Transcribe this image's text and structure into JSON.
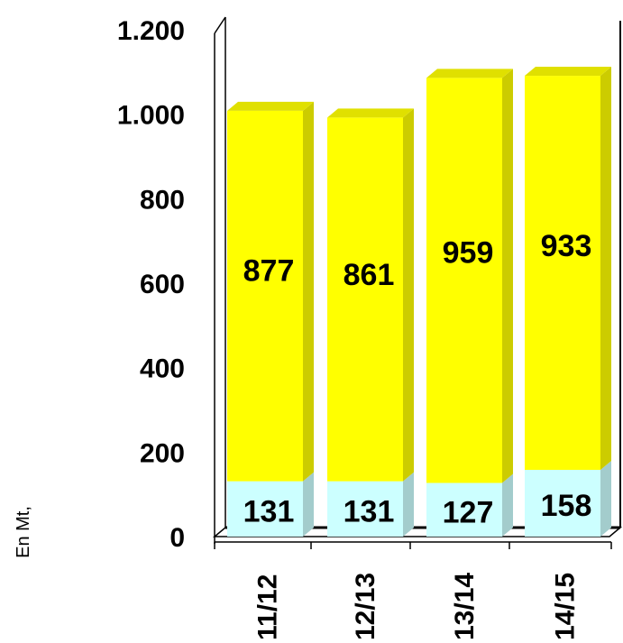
{
  "chart_data": {
    "type": "bar",
    "stacked": true,
    "categories": [
      "11/12",
      "12/13",
      "13/14",
      "14/15"
    ],
    "series": [
      {
        "values": [
          131,
          131,
          127,
          158
        ],
        "color": "#ccffff"
      },
      {
        "values": [
          877,
          861,
          959,
          933
        ],
        "color": "#ffff00"
      }
    ],
    "ylabel": "En Mt,",
    "ylim": [
      0,
      1200
    ],
    "yticks": [
      {
        "value": 0,
        "label": "0"
      },
      {
        "value": 200,
        "label": "200"
      },
      {
        "value": 400,
        "label": "400"
      },
      {
        "value": 600,
        "label": "600"
      },
      {
        "value": 800,
        "label": "800"
      },
      {
        "value": 1000,
        "label": "1.000"
      },
      {
        "value": 1200,
        "label": "1.200"
      }
    ],
    "grid": false,
    "legend": "none"
  }
}
